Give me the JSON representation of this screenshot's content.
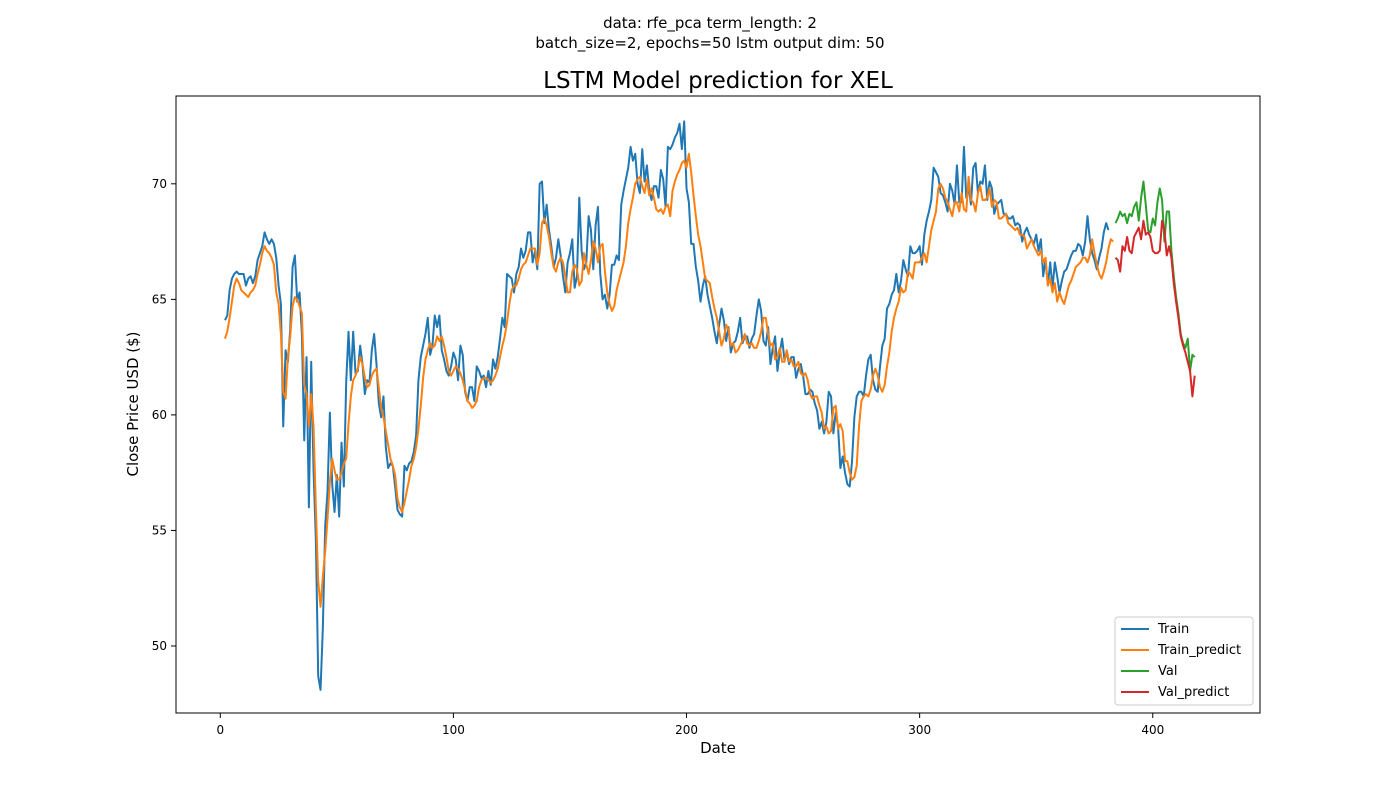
{
  "figure": {
    "suptitle_line1": "data: rfe_pca term_length: 2",
    "suptitle_line2": "batch_size=2, epochs=50 lstm output dim: 50"
  },
  "chart_data": {
    "type": "line",
    "title": "LSTM Model prediction for XEL",
    "xlabel": "Date",
    "ylabel": "Close Price USD ($)",
    "xlim": [
      -19,
      446
    ],
    "ylim": [
      47.1,
      73.8
    ],
    "xticks": [
      0,
      100,
      200,
      300,
      400
    ],
    "yticks": [
      50,
      55,
      60,
      65,
      70
    ],
    "grid": false,
    "legend_position": "lower-right",
    "series": [
      {
        "name": "Train",
        "color": "#1f77b4",
        "x_start": 2,
        "values": [
          64.1,
          64.3,
          65.4,
          65.9,
          66.1,
          66.2,
          66.1,
          66.1,
          66.1,
          65.6,
          65.9,
          66.0,
          65.7,
          66.0,
          66.7,
          67.0,
          67.3,
          67.9,
          67.6,
          67.4,
          67.6,
          67.4,
          66.8,
          65.6,
          64.8,
          59.5,
          62.8,
          62.3,
          63.7,
          66.4,
          66.9,
          64.9,
          65.3,
          63.5,
          58.9,
          62.5,
          56.0,
          62.3,
          57.6,
          54.6,
          48.7,
          48.1,
          50.8,
          55.2,
          56.7,
          60.1,
          57.0,
          55.8,
          57.4,
          55.6,
          58.8,
          56.9,
          61.4,
          63.6,
          61.5,
          63.6,
          61.8,
          61.9,
          63.0,
          62.2,
          60.9,
          61.5,
          61.4,
          62.8,
          63.5,
          62.2,
          60.5,
          59.9,
          60.8,
          58.6,
          57.7,
          57.9,
          57.8,
          56.9,
          55.9,
          55.7,
          55.6,
          57.8,
          57.6,
          57.9,
          58.0,
          58.4,
          59.1,
          61.5,
          62.5,
          63.0,
          63.5,
          64.2,
          62.6,
          63.0,
          64.3,
          63.8,
          64.3,
          62.8,
          62.4,
          61.9,
          61.7,
          62.1,
          62.7,
          62.4,
          61.5,
          63.0,
          62.6,
          61.0,
          60.6,
          61.2,
          61.2,
          60.6,
          62.1,
          61.9,
          61.6,
          61.7,
          61.2,
          61.9,
          61.3,
          62.4,
          62.0,
          62.5,
          63.3,
          64.2,
          63.8,
          66.1,
          66.0,
          65.9,
          65.3,
          66.1,
          66.4,
          67.2,
          66.8,
          67.1,
          67.9,
          67.9,
          66.6,
          67.1,
          66.3,
          70.0,
          70.1,
          68.3,
          69.1,
          68.0,
          67.3,
          66.4,
          66.8,
          67.6,
          66.9,
          66.0,
          65.3,
          66.6,
          67.0,
          67.6,
          65.5,
          66.0,
          69.4,
          67.1,
          66.3,
          66.6,
          68.6,
          68.0,
          66.3,
          68.2,
          69.0,
          66.1,
          65.0,
          65.2,
          64.6,
          65.2,
          66.5,
          66.5,
          66.9,
          66.7,
          69.1,
          69.7,
          70.2,
          70.7,
          71.6,
          71.0,
          71.3,
          70.0,
          69.6,
          71.5,
          70.1,
          70.8,
          69.7,
          69.3,
          69.9,
          69.9,
          69.4,
          70.6,
          70.2,
          69.0,
          71.6,
          71.5,
          71.7,
          72.0,
          72.2,
          72.6,
          71.5,
          72.7,
          69.8,
          69.2,
          67.4,
          67.4,
          66.4,
          65.8,
          64.9,
          65.6,
          66.0,
          65.2,
          64.7,
          64.2,
          63.6,
          63.1,
          63.9,
          64.6,
          64.1,
          63.2,
          63.8,
          62.7,
          63.1,
          63.2,
          63.6,
          64.2,
          63.1,
          63.4,
          63.4,
          62.9,
          63.3,
          63.5,
          64.3,
          65.0,
          64.5,
          63.2,
          63.0,
          63.8,
          62.2,
          62.9,
          63.4,
          61.9,
          62.7,
          63.3,
          62.4,
          62.7,
          62.2,
          62.5,
          62.5,
          61.6,
          62.0,
          62.2,
          61.7,
          60.9,
          60.9,
          61.1,
          61.0,
          60.5,
          60.2,
          59.4,
          59.7,
          59.2,
          59.7,
          61.0,
          60.8,
          59.2,
          60.1,
          59.5,
          57.7,
          58.2,
          57.5,
          57.0,
          56.9,
          58.0,
          59.9,
          60.8,
          61.0,
          61.0,
          60.8,
          61.7,
          62.4,
          62.6,
          61.5,
          61.1,
          61.0,
          62.1,
          63.0,
          63.3,
          64.6,
          64.8,
          65.2,
          65.4,
          66.1,
          65.3,
          65.8,
          66.7,
          66.3,
          66.0,
          67.3,
          67.0,
          67.0,
          67.1,
          67.3,
          66.5,
          67.8,
          68.4,
          68.8,
          69.3,
          70.7,
          70.5,
          70.3,
          69.6,
          69.5,
          69.2,
          68.8,
          70.0,
          69.7,
          69.1,
          70.8,
          69.2,
          69.2,
          71.6,
          69.4,
          69.9,
          69.1,
          70.7,
          70.9,
          69.6,
          70.1,
          70.0,
          70.8,
          69.3,
          70.1,
          69.8,
          68.7,
          69.1,
          69.2,
          69.3,
          68.7,
          68.7,
          68.5,
          68.5,
          68.6,
          68.2,
          68.3,
          68.2,
          67.5,
          67.9,
          68.1,
          67.8,
          67.6,
          67.4,
          67.8,
          67.1,
          67.6,
          66.0,
          66.7,
          65.6,
          66.6,
          65.5,
          66.6,
          66.0,
          65.3,
          65.8,
          66.2,
          66.3,
          66.6,
          66.9,
          67.1,
          67.1,
          67.4,
          67.3,
          66.9,
          67.5,
          68.6,
          67.6,
          67.0,
          66.7,
          66.3,
          66.8,
          67.2,
          67.9,
          68.3,
          68.0
        ]
      },
      {
        "name": "Train_predict",
        "color": "#ff7f0e",
        "x_start": 2,
        "values": [
          63.3,
          63.6,
          64.2,
          64.9,
          65.6,
          65.9,
          65.7,
          65.4,
          65.3,
          65.2,
          65.1,
          65.3,
          65.4,
          65.6,
          66.1,
          66.5,
          67.0,
          67.3,
          67.1,
          67.0,
          66.8,
          66.5,
          65.3,
          64.8,
          63.5,
          61.0,
          60.7,
          62.5,
          63.4,
          64.7,
          65.1,
          65.0,
          64.7,
          64.4,
          61.3,
          60.9,
          59.5,
          60.9,
          59.5,
          56.0,
          52.8,
          51.7,
          53.0,
          54.1,
          55.5,
          57.1,
          58.1,
          57.6,
          57.2,
          57.2,
          57.5,
          57.9,
          58.1,
          59.6,
          60.8,
          61.5,
          61.7,
          62.0,
          62.5,
          62.2,
          61.6,
          61.2,
          61.3,
          61.7,
          61.9,
          62.0,
          61.2,
          60.3,
          59.9,
          59.3,
          58.7,
          58.1,
          57.8,
          57.4,
          56.4,
          56.0,
          55.8,
          56.2,
          56.7,
          57.2,
          57.8,
          58.1,
          58.6,
          59.4,
          60.4,
          61.6,
          62.4,
          62.8,
          63.1,
          62.9,
          63.0,
          63.4,
          63.2,
          63.4,
          63.0,
          62.5,
          61.9,
          61.7,
          61.9,
          62.1,
          62.0,
          61.8,
          61.5,
          61.1,
          60.6,
          60.5,
          60.3,
          60.4,
          60.6,
          61.2,
          61.5,
          61.6,
          61.6,
          61.5,
          61.4,
          61.5,
          61.7,
          62.0,
          62.5,
          63.0,
          63.4,
          64.0,
          64.8,
          65.4,
          65.6,
          65.6,
          65.9,
          66.3,
          66.5,
          66.6,
          66.9,
          67.2,
          67.2,
          67.2,
          66.5,
          67.0,
          68.3,
          68.5,
          68.2,
          67.7,
          67.0,
          66.4,
          66.2,
          66.6,
          66.8,
          66.6,
          66.0,
          65.3,
          65.3,
          66.2,
          66.5,
          66.3,
          65.6,
          65.8,
          67.0,
          66.5,
          66.1,
          66.7,
          67.5,
          67.2,
          66.6,
          67.3,
          67.4,
          66.2,
          65.3,
          64.8,
          64.5,
          64.7,
          65.4,
          65.8,
          66.2,
          66.6,
          67.3,
          68.3,
          68.9,
          69.4,
          70.0,
          70.2,
          70.3,
          69.9,
          69.6,
          70.2,
          69.5,
          69.8,
          69.4,
          68.9,
          68.8,
          68.9,
          68.7,
          69.0,
          69.1,
          68.6,
          69.7,
          70.1,
          70.4,
          70.6,
          70.9,
          71.0,
          70.7,
          71.3,
          70.5,
          69.5,
          68.6,
          67.8,
          67.3,
          66.6,
          65.9,
          65.8,
          65.7,
          65.1,
          64.6,
          64.2,
          63.6,
          63.0,
          63.3,
          63.9,
          63.7,
          63.0,
          63.1,
          62.7,
          62.8,
          63.0,
          63.2,
          63.5,
          63.1,
          63.0,
          63.1,
          62.9,
          62.9,
          63.2,
          63.6,
          64.2,
          64.2,
          63.5,
          63.0,
          63.1,
          62.4,
          62.5,
          62.9,
          62.3,
          62.3,
          62.8,
          62.3,
          62.4,
          62.1,
          62.1,
          62.3,
          61.8,
          61.7,
          61.8,
          61.5,
          60.9,
          60.7,
          60.8,
          60.8,
          60.4,
          60.1,
          59.4,
          59.5,
          59.2,
          59.3,
          60.3,
          60.4,
          59.4,
          59.6,
          59.3,
          58.0,
          58.0,
          57.5,
          57.2,
          57.3,
          57.8,
          59.5,
          60.6,
          60.8,
          60.9,
          60.8,
          61.1,
          61.7,
          62.0,
          61.7,
          61.2,
          61.0,
          61.3,
          62.1,
          62.7,
          63.6,
          64.2,
          64.6,
          64.9,
          65.5,
          65.3,
          65.4,
          66.2,
          66.1,
          65.9,
          66.6,
          66.6,
          66.6,
          66.8,
          67.0,
          66.6,
          67.3,
          68.0,
          68.4,
          68.8,
          69.8,
          70.0,
          69.8,
          69.4,
          69.2,
          68.9,
          68.6,
          69.2,
          69.2,
          68.8,
          69.6,
          68.9,
          68.8,
          70.3,
          69.3,
          69.2,
          68.8,
          69.6,
          69.9,
          69.3,
          69.3,
          69.4,
          69.8,
          69.0,
          69.3,
          69.2,
          68.5,
          68.5,
          68.6,
          68.7,
          68.3,
          68.2,
          68.1,
          68.0,
          68.1,
          67.8,
          67.8,
          67.7,
          67.2,
          67.4,
          67.6,
          67.3,
          67.1,
          66.9,
          67.1,
          66.6,
          66.8,
          65.6,
          65.9,
          65.3,
          65.7,
          64.9,
          65.3,
          65.0,
          64.8,
          65.2,
          65.6,
          65.8,
          66.1,
          66.4,
          66.5,
          66.6,
          66.8,
          66.8,
          66.6,
          66.9,
          67.6,
          67.0,
          66.5,
          66.1,
          65.9,
          66.2,
          66.6,
          67.2,
          67.6,
          67.5
        ]
      },
      {
        "name": "Val",
        "color": "#2ca02c",
        "x_start": 384,
        "values": [
          68.3,
          68.5,
          68.8,
          68.6,
          68.7,
          68.3,
          68.7,
          68.6,
          69.0,
          69.2,
          68.4,
          69.4,
          70.1,
          69.1,
          68.0,
          67.9,
          68.5,
          68.2,
          69.2,
          69.8,
          69.3,
          67.5,
          68.8,
          68.8,
          67.1,
          66.0,
          65.1,
          64.4,
          63.5,
          63.1,
          62.9,
          63.3,
          61.9,
          62.6,
          62.5
        ]
      },
      {
        "name": "Val_predict",
        "color": "#d62728",
        "x_start": 384,
        "values": [
          66.8,
          66.7,
          66.2,
          67.3,
          67.1,
          67.7,
          67.1,
          67.0,
          67.7,
          67.9,
          68.1,
          67.6,
          68.4,
          67.8,
          67.9,
          67.7,
          67.1,
          67.0,
          67.0,
          67.1,
          68.4,
          68.0,
          66.9,
          67.3,
          66.8,
          65.7,
          64.9,
          64.2,
          63.4,
          63.0,
          62.7,
          62.3,
          61.9,
          60.8,
          61.7
        ]
      }
    ]
  }
}
